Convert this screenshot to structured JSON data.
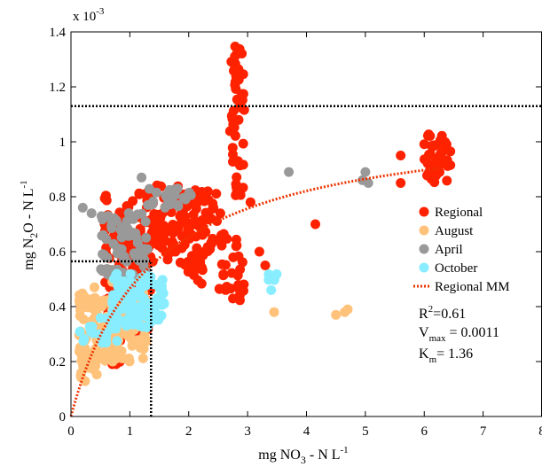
{
  "chart_data": {
    "type": "scatter",
    "title": "",
    "xlabel": {
      "pre": "mg NO",
      "sub": "3",
      "post": " - N L",
      "sup": "-1"
    },
    "ylabel": {
      "pre": "mg N",
      "sub": "2",
      "post": "O - N L",
      "sup": "-1"
    },
    "y_exponent_label": {
      "base": "x 10",
      "sup": "-3"
    },
    "xlim": [
      0,
      8
    ],
    "ylim": [
      0,
      1.4
    ],
    "x_ticks": [
      "0",
      "1",
      "2",
      "3",
      "4",
      "5",
      "6",
      "7",
      "8"
    ],
    "y_ticks": [
      "0",
      "0.2",
      "0.4",
      "0.6",
      "0.8",
      "1",
      "1.2",
      "1.4"
    ],
    "grid": false,
    "legend_position": "right",
    "series": [
      {
        "name": "Regional",
        "color": "#ff2200",
        "clusters": [
          {
            "x": [
              0.55,
              1.35
            ],
            "y": [
              0.3,
              0.82
            ],
            "n": 160
          },
          {
            "x": [
              0.6,
              0.85
            ],
            "y": [
              0.18,
              0.35
            ],
            "n": 25
          },
          {
            "x": [
              1.35,
              1.9
            ],
            "y": [
              0.55,
              0.85
            ],
            "n": 70
          },
          {
            "x": [
              1.9,
              2.25
            ],
            "y": [
              0.45,
              0.84
            ],
            "n": 55
          },
          {
            "x": [
              2.2,
              2.55
            ],
            "y": [
              0.6,
              0.84
            ],
            "n": 25
          },
          {
            "x": [
              2.5,
              2.95
            ],
            "y": [
              0.42,
              0.7
            ],
            "n": 30
          },
          {
            "x": [
              2.7,
              2.95
            ],
            "y": [
              0.8,
              1.35
            ],
            "n": 50
          },
          {
            "x": [
              6.0,
              6.45
            ],
            "y": [
              0.85,
              1.03
            ],
            "n": 45
          }
        ],
        "points": [
          {
            "x": 3.3,
            "y": 0.55
          },
          {
            "x": 3.05,
            "y": 0.78
          },
          {
            "x": 4.15,
            "y": 0.7
          },
          {
            "x": 5.6,
            "y": 0.85
          },
          {
            "x": 5.6,
            "y": 0.95
          },
          {
            "x": 3.2,
            "y": 0.6
          },
          {
            "x": 2.42,
            "y": 0.76
          }
        ]
      },
      {
        "name": "August",
        "color": "#ffc27a",
        "clusters": [
          {
            "x": [
              0.12,
              1.3
            ],
            "y": [
              0.2,
              0.45
            ],
            "n": 180
          },
          {
            "x": [
              0.15,
              0.5
            ],
            "y": [
              0.12,
              0.25
            ],
            "n": 20
          }
        ],
        "points": [
          {
            "x": 0.4,
            "y": 0.47
          },
          {
            "x": 0.7,
            "y": 0.49
          },
          {
            "x": 3.45,
            "y": 0.38
          },
          {
            "x": 4.5,
            "y": 0.37
          },
          {
            "x": 4.65,
            "y": 0.38
          },
          {
            "x": 4.7,
            "y": 0.39
          }
        ]
      },
      {
        "name": "April",
        "color": "#999999",
        "clusters": [
          {
            "x": [
              0.5,
              1.3
            ],
            "y": [
              0.5,
              0.75
            ],
            "n": 70
          },
          {
            "x": [
              1.3,
              2.05
            ],
            "y": [
              0.76,
              0.83
            ],
            "n": 25
          }
        ],
        "points": [
          {
            "x": 0.2,
            "y": 0.76
          },
          {
            "x": 0.35,
            "y": 0.74
          },
          {
            "x": 1.2,
            "y": 0.87
          },
          {
            "x": 1.25,
            "y": 0.48
          },
          {
            "x": 3.7,
            "y": 0.89
          },
          {
            "x": 5.0,
            "y": 0.89
          },
          {
            "x": 4.95,
            "y": 0.86
          },
          {
            "x": 5.05,
            "y": 0.85
          }
        ]
      },
      {
        "name": "October",
        "color": "#88eeff",
        "clusters": [
          {
            "x": [
              0.7,
              1.6
            ],
            "y": [
              0.32,
              0.52
            ],
            "n": 120
          },
          {
            "x": [
              0.15,
              0.8
            ],
            "y": [
              0.25,
              0.36
            ],
            "n": 20
          },
          {
            "x": [
              3.3,
              3.5
            ],
            "y": [
              0.45,
              0.52
            ],
            "n": 8
          }
        ],
        "points": [
          {
            "x": 3.4,
            "y": 0.46
          }
        ]
      }
    ],
    "fit_curve": {
      "name": "Regional MM",
      "color": "#ee3300",
      "style": "dotted",
      "vmax": 0.0011,
      "km": 1.36,
      "x_range": [
        0,
        6.3
      ]
    },
    "reference_lines": [
      {
        "orientation": "horizontal",
        "y": 1.13,
        "x_range": [
          0,
          8
        ]
      },
      {
        "orientation": "horizontal",
        "y": 0.565,
        "x_range": [
          0,
          1.36
        ]
      },
      {
        "orientation": "vertical",
        "x": 1.36,
        "y_range": [
          0,
          0.565
        ]
      }
    ],
    "stats": {
      "r2": {
        "base": "R",
        "sup": "2",
        "value": "=0.61"
      },
      "vmax": {
        "base": "V",
        "sub": "max",
        "value": " = 0.0011"
      },
      "km": {
        "base": "K",
        "sub": "m",
        "value": "= 1.36"
      }
    }
  }
}
